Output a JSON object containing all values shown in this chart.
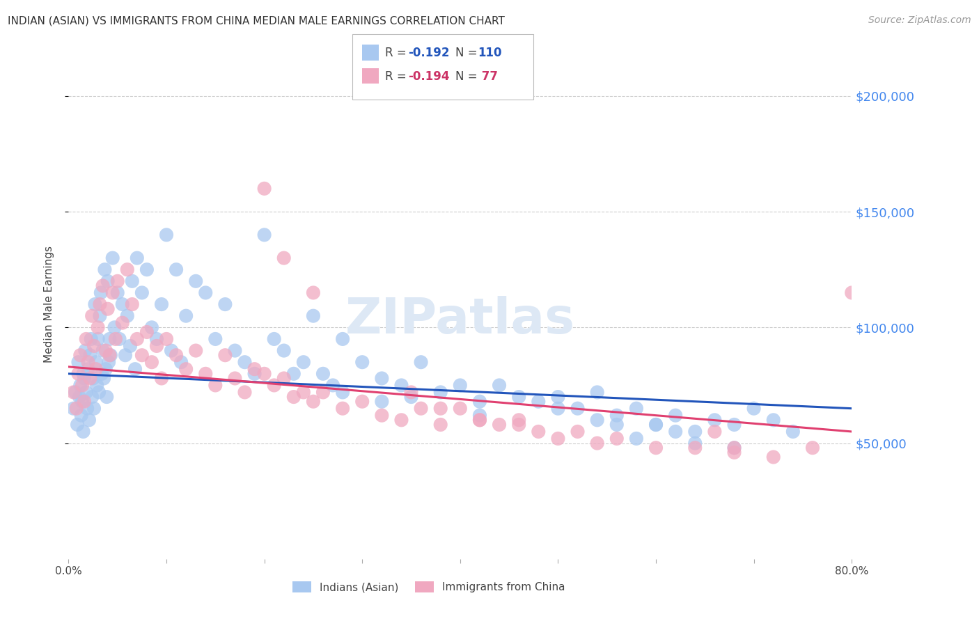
{
  "title": "INDIAN (ASIAN) VS IMMIGRANTS FROM CHINA MEDIAN MALE EARNINGS CORRELATION CHART",
  "source": "Source: ZipAtlas.com",
  "ylabel": "Median Male Earnings",
  "xlim": [
    0.0,
    0.8
  ],
  "ylim": [
    0,
    220000
  ],
  "yticks": [
    50000,
    100000,
    150000,
    200000
  ],
  "ytick_labels": [
    "$50,000",
    "$100,000",
    "$150,000",
    "$200,000"
  ],
  "xticks": [
    0.0,
    0.1,
    0.2,
    0.3,
    0.4,
    0.5,
    0.6,
    0.7,
    0.8
  ],
  "blue_color": "#a8c8f0",
  "pink_color": "#f0a8c0",
  "blue_line_color": "#2255bb",
  "pink_line_color": "#e04070",
  "blue_R": -0.192,
  "blue_N": 110,
  "pink_R": -0.194,
  "pink_N": 77,
  "legend_label_blue": "Indians (Asian)",
  "legend_label_pink": "Immigrants from China",
  "watermark": "ZIPatlas",
  "blue_x": [
    0.005,
    0.007,
    0.009,
    0.01,
    0.011,
    0.012,
    0.013,
    0.014,
    0.015,
    0.015,
    0.016,
    0.017,
    0.018,
    0.019,
    0.02,
    0.021,
    0.022,
    0.023,
    0.024,
    0.025,
    0.026,
    0.027,
    0.028,
    0.029,
    0.03,
    0.031,
    0.032,
    0.033,
    0.034,
    0.035,
    0.036,
    0.037,
    0.038,
    0.039,
    0.04,
    0.041,
    0.042,
    0.043,
    0.045,
    0.047,
    0.05,
    0.052,
    0.055,
    0.058,
    0.06,
    0.063,
    0.065,
    0.068,
    0.07,
    0.075,
    0.08,
    0.085,
    0.09,
    0.095,
    0.1,
    0.105,
    0.11,
    0.115,
    0.12,
    0.13,
    0.14,
    0.15,
    0.16,
    0.17,
    0.18,
    0.19,
    0.2,
    0.21,
    0.22,
    0.23,
    0.24,
    0.25,
    0.26,
    0.27,
    0.28,
    0.3,
    0.32,
    0.34,
    0.36,
    0.38,
    0.4,
    0.42,
    0.44,
    0.46,
    0.48,
    0.5,
    0.52,
    0.54,
    0.56,
    0.58,
    0.6,
    0.62,
    0.64,
    0.66,
    0.68,
    0.7,
    0.72,
    0.74,
    0.28,
    0.32,
    0.35,
    0.42,
    0.5,
    0.54,
    0.56,
    0.58,
    0.6,
    0.62,
    0.64,
    0.68
  ],
  "blue_y": [
    65000,
    72000,
    58000,
    85000,
    70000,
    75000,
    62000,
    68000,
    80000,
    55000,
    78000,
    90000,
    72000,
    65000,
    82000,
    60000,
    88000,
    95000,
    70000,
    78000,
    65000,
    110000,
    85000,
    75000,
    95000,
    72000,
    105000,
    115000,
    80000,
    90000,
    78000,
    125000,
    82000,
    70000,
    120000,
    85000,
    95000,
    88000,
    130000,
    100000,
    115000,
    95000,
    110000,
    88000,
    105000,
    92000,
    120000,
    82000,
    130000,
    115000,
    125000,
    100000,
    95000,
    110000,
    140000,
    90000,
    125000,
    85000,
    105000,
    120000,
    115000,
    95000,
    110000,
    90000,
    85000,
    80000,
    140000,
    95000,
    90000,
    80000,
    85000,
    105000,
    80000,
    75000,
    95000,
    85000,
    78000,
    75000,
    85000,
    72000,
    75000,
    68000,
    75000,
    70000,
    68000,
    70000,
    65000,
    72000,
    62000,
    65000,
    58000,
    62000,
    55000,
    60000,
    58000,
    65000,
    60000,
    55000,
    72000,
    68000,
    70000,
    62000,
    65000,
    60000,
    58000,
    52000,
    58000,
    55000,
    50000,
    48000
  ],
  "pink_x": [
    0.005,
    0.008,
    0.01,
    0.012,
    0.014,
    0.016,
    0.018,
    0.02,
    0.022,
    0.024,
    0.026,
    0.028,
    0.03,
    0.032,
    0.035,
    0.038,
    0.04,
    0.042,
    0.045,
    0.048,
    0.05,
    0.055,
    0.06,
    0.065,
    0.07,
    0.075,
    0.08,
    0.085,
    0.09,
    0.095,
    0.1,
    0.11,
    0.12,
    0.13,
    0.14,
    0.15,
    0.16,
    0.17,
    0.18,
    0.19,
    0.2,
    0.21,
    0.22,
    0.23,
    0.24,
    0.25,
    0.26,
    0.28,
    0.3,
    0.32,
    0.34,
    0.36,
    0.38,
    0.4,
    0.42,
    0.44,
    0.46,
    0.48,
    0.5,
    0.52,
    0.54,
    0.56,
    0.6,
    0.64,
    0.68,
    0.72,
    0.76,
    0.8,
    0.35,
    0.38,
    0.42,
    0.46,
    0.2,
    0.22,
    0.25,
    0.66,
    0.68
  ],
  "pink_y": [
    72000,
    65000,
    80000,
    88000,
    75000,
    68000,
    95000,
    85000,
    78000,
    105000,
    92000,
    82000,
    100000,
    110000,
    118000,
    90000,
    108000,
    88000,
    115000,
    95000,
    120000,
    102000,
    125000,
    110000,
    95000,
    88000,
    98000,
    85000,
    92000,
    78000,
    95000,
    88000,
    82000,
    90000,
    80000,
    75000,
    88000,
    78000,
    72000,
    82000,
    80000,
    75000,
    78000,
    70000,
    72000,
    68000,
    72000,
    65000,
    68000,
    62000,
    60000,
    65000,
    58000,
    65000,
    60000,
    58000,
    60000,
    55000,
    52000,
    55000,
    50000,
    52000,
    48000,
    48000,
    46000,
    44000,
    48000,
    115000,
    72000,
    65000,
    60000,
    58000,
    160000,
    130000,
    115000,
    55000,
    48000
  ]
}
